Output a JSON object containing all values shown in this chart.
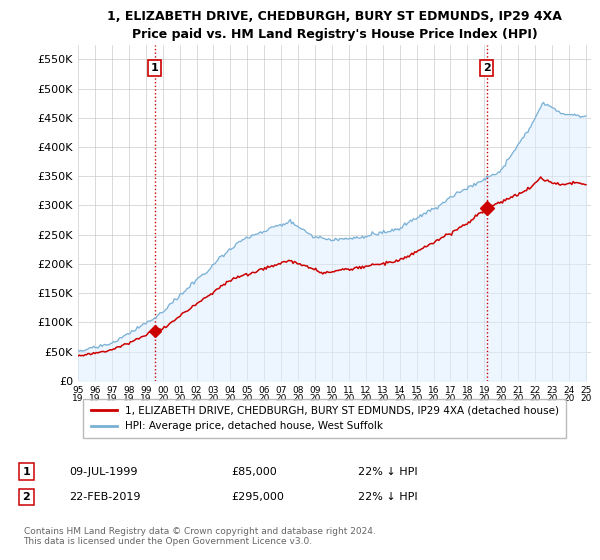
{
  "title": "1, ELIZABETH DRIVE, CHEDBURGH, BURY ST EDMUNDS, IP29 4XA",
  "subtitle": "Price paid vs. HM Land Registry's House Price Index (HPI)",
  "ylim": [
    0,
    575000
  ],
  "yticks": [
    0,
    50000,
    100000,
    150000,
    200000,
    250000,
    300000,
    350000,
    400000,
    450000,
    500000,
    550000
  ],
  "ytick_labels": [
    "£0",
    "£50K",
    "£100K",
    "£150K",
    "£200K",
    "£250K",
    "£300K",
    "£350K",
    "£400K",
    "£450K",
    "£500K",
    "£550K"
  ],
  "sale1_date_num": 1999.52,
  "sale1_price": 85000,
  "sale2_date_num": 2019.13,
  "sale2_price": 295000,
  "sale1_date_str": "09-JUL-1999",
  "sale1_price_str": "£85,000",
  "sale1_hpi_str": "22% ↓ HPI",
  "sale2_date_str": "22-FEB-2019",
  "sale2_price_str": "£295,000",
  "sale2_hpi_str": "22% ↓ HPI",
  "red_line_color": "#cc0000",
  "blue_line_color": "#7ab0d4",
  "blue_fill_color": "#ddeeff",
  "dashed_vline_color": "#cc0000",
  "background_color": "#ffffff",
  "grid_color": "#cccccc",
  "legend_label_red": "1, ELIZABETH DRIVE, CHEDBURGH, BURY ST EDMUNDS, IP29 4XA (detached house)",
  "legend_label_blue": "HPI: Average price, detached house, West Suffolk",
  "footer_text": "Contains HM Land Registry data © Crown copyright and database right 2024.\nThis data is licensed under the Open Government Licence v3.0.",
  "xstart": 1995.0,
  "xend": 2025.3
}
